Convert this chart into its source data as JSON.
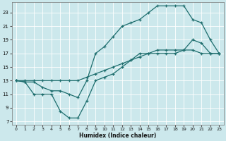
{
  "xlabel": "Humidex (Indice chaleur)",
  "bg_color": "#cce8ec",
  "line_color": "#1e6e6e",
  "grid_color": "#ffffff",
  "xlim": [
    -0.5,
    23.5
  ],
  "ylim": [
    6.5,
    24.5
  ],
  "xticks": [
    0,
    1,
    2,
    3,
    4,
    5,
    6,
    7,
    8,
    9,
    10,
    11,
    12,
    13,
    14,
    15,
    16,
    17,
    18,
    19,
    20,
    21,
    22,
    23
  ],
  "yticks": [
    7,
    9,
    11,
    13,
    15,
    17,
    19,
    21,
    23
  ],
  "line_top_x": [
    0,
    1,
    2,
    3,
    4,
    5,
    6,
    7,
    8,
    9,
    10,
    11,
    12,
    13,
    14,
    15,
    16,
    17,
    18,
    19,
    20,
    21,
    22,
    23
  ],
  "line_top_y": [
    13,
    13,
    13,
    13,
    13,
    13,
    13,
    13,
    13.5,
    14,
    14.5,
    15,
    15.5,
    16,
    16.5,
    17,
    17.5,
    17.5,
    17.5,
    17.5,
    17.5,
    17,
    17,
    17
  ],
  "line_mid_x": [
    0,
    1,
    2,
    3,
    4,
    5,
    6,
    7,
    8,
    9,
    10,
    11,
    12,
    13,
    14,
    15,
    16,
    17,
    18,
    19,
    20,
    21,
    22,
    23
  ],
  "line_mid_y": [
    13,
    12.8,
    12.8,
    12,
    11.5,
    11.5,
    11,
    10.5,
    13,
    17,
    18,
    19.5,
    21,
    21.5,
    22,
    23,
    24,
    24,
    24,
    24,
    22,
    21.5,
    19,
    17
  ],
  "line_bot_x": [
    0,
    1,
    2,
    3,
    4,
    5,
    6,
    7,
    8,
    9,
    10,
    11,
    12,
    13,
    14,
    15,
    16,
    17,
    18,
    19,
    20,
    21,
    22,
    23
  ],
  "line_bot_y": [
    13,
    12.8,
    11,
    11,
    11,
    8.5,
    7.5,
    7.5,
    10,
    13,
    13.5,
    14,
    15,
    16,
    17,
    17,
    17,
    17,
    17,
    17.5,
    19,
    18.5,
    17,
    17
  ]
}
